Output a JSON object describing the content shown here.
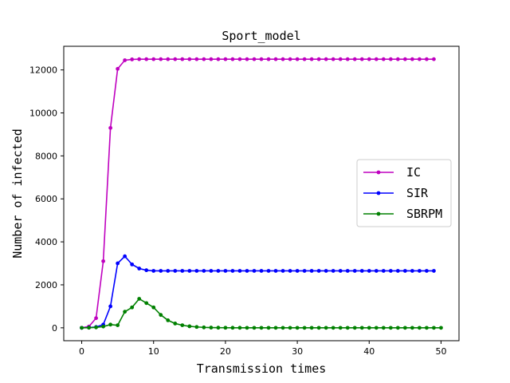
{
  "chart_data": {
    "type": "line",
    "title": "Sport_model",
    "xlabel": "Transmission times",
    "ylabel": "Number of infected",
    "xlim": [
      -2.5,
      52.5
    ],
    "ylim": [
      -600,
      13100
    ],
    "xticks": [
      0,
      10,
      20,
      30,
      40,
      50
    ],
    "yticks": [
      0,
      2000,
      4000,
      6000,
      8000,
      10000,
      12000
    ],
    "grid": false,
    "legend_position": "center-right",
    "series": [
      {
        "name": "IC",
        "color": "#bf00bf",
        "x": [
          0,
          1,
          2,
          3,
          4,
          5,
          6,
          7,
          8,
          9,
          10,
          11,
          12,
          13,
          14,
          15,
          16,
          17,
          18,
          19,
          20,
          21,
          22,
          23,
          24,
          25,
          26,
          27,
          28,
          29,
          30,
          31,
          32,
          33,
          34,
          35,
          36,
          37,
          38,
          39,
          40,
          41,
          42,
          43,
          44,
          45,
          46,
          47,
          48,
          49
        ],
        "y": [
          0,
          60,
          450,
          3100,
          9300,
          12050,
          12450,
          12490,
          12500,
          12500,
          12500,
          12500,
          12500,
          12500,
          12500,
          12500,
          12500,
          12500,
          12500,
          12500,
          12500,
          12500,
          12500,
          12500,
          12500,
          12500,
          12500,
          12500,
          12500,
          12500,
          12500,
          12500,
          12500,
          12500,
          12500,
          12500,
          12500,
          12500,
          12500,
          12500,
          12500,
          12500,
          12500,
          12500,
          12500,
          12500,
          12500,
          12500,
          12500,
          12500
        ]
      },
      {
        "name": "SIR",
        "color": "#0000ff",
        "x": [
          0,
          1,
          2,
          3,
          4,
          5,
          6,
          7,
          8,
          9,
          10,
          11,
          12,
          13,
          14,
          15,
          16,
          17,
          18,
          19,
          20,
          21,
          22,
          23,
          24,
          25,
          26,
          27,
          28,
          29,
          30,
          31,
          32,
          33,
          34,
          35,
          36,
          37,
          38,
          39,
          40,
          41,
          42,
          43,
          44,
          45,
          46,
          47,
          48,
          49
        ],
        "y": [
          0,
          10,
          40,
          150,
          1000,
          3000,
          3330,
          2950,
          2760,
          2680,
          2650,
          2650,
          2650,
          2650,
          2650,
          2650,
          2650,
          2650,
          2650,
          2650,
          2650,
          2650,
          2650,
          2650,
          2650,
          2650,
          2650,
          2650,
          2650,
          2650,
          2650,
          2650,
          2650,
          2650,
          2650,
          2650,
          2650,
          2650,
          2650,
          2650,
          2650,
          2650,
          2650,
          2650,
          2650,
          2650,
          2650,
          2650,
          2650,
          2650
        ]
      },
      {
        "name": "SBRPM",
        "color": "#008000",
        "x": [
          0,
          1,
          2,
          3,
          4,
          5,
          6,
          7,
          8,
          9,
          10,
          11,
          12,
          13,
          14,
          15,
          16,
          17,
          18,
          19,
          20,
          21,
          22,
          23,
          24,
          25,
          26,
          27,
          28,
          29,
          30,
          31,
          32,
          33,
          34,
          35,
          36,
          37,
          38,
          39,
          40,
          41,
          42,
          43,
          44,
          45,
          46,
          47,
          48,
          49,
          50
        ],
        "y": [
          0,
          5,
          20,
          60,
          150,
          120,
          750,
          950,
          1350,
          1150,
          950,
          600,
          350,
          200,
          120,
          70,
          40,
          20,
          10,
          5,
          3,
          2,
          1,
          0,
          0,
          0,
          0,
          0,
          0,
          0,
          0,
          0,
          0,
          0,
          0,
          0,
          0,
          0,
          0,
          0,
          0,
          0,
          0,
          0,
          0,
          0,
          0,
          0,
          0,
          0,
          0
        ]
      }
    ]
  }
}
